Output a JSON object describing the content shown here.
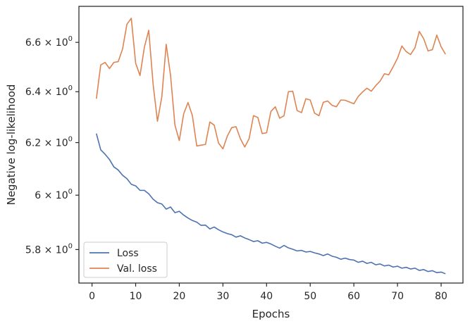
{
  "chart_data": {
    "type": "line",
    "xlabel": "Epochs",
    "ylabel": "Negative log-likelihood",
    "xlim": [
      -3,
      85
    ],
    "ylim": [
      5.68,
      6.75
    ],
    "y_scale": "log",
    "grid": false,
    "legend_position": "lower-left",
    "x_ticks": [
      0,
      10,
      20,
      30,
      40,
      50,
      60,
      70,
      80
    ],
    "x_tick_labels": [
      "0",
      "10",
      "20",
      "30",
      "40",
      "50",
      "60",
      "70",
      "80"
    ],
    "y_ticks": [
      5.8,
      6.0,
      6.2,
      6.4,
      6.6
    ],
    "y_tick_labels": [
      {
        "mantissa": "5.8",
        "base": "10",
        "exp": "0"
      },
      {
        "mantissa": "6",
        "base": "10",
        "exp": "0"
      },
      {
        "mantissa": "6.2",
        "base": "10",
        "exp": "0"
      },
      {
        "mantissa": "6.4",
        "base": "10",
        "exp": "0"
      },
      {
        "mantissa": "6.6",
        "base": "10",
        "exp": "0"
      }
    ],
    "x": [
      1,
      2,
      3,
      4,
      5,
      6,
      7,
      8,
      9,
      10,
      11,
      12,
      13,
      14,
      15,
      16,
      17,
      18,
      19,
      20,
      21,
      22,
      23,
      24,
      25,
      26,
      27,
      28,
      29,
      30,
      31,
      32,
      33,
      34,
      35,
      36,
      37,
      38,
      39,
      40,
      41,
      42,
      43,
      44,
      45,
      46,
      47,
      48,
      49,
      50,
      51,
      52,
      53,
      54,
      55,
      56,
      57,
      58,
      59,
      60,
      61,
      62,
      63,
      64,
      65,
      66,
      67,
      68,
      69,
      70,
      71,
      72,
      73,
      74,
      75,
      76,
      77,
      78,
      79,
      80,
      81
    ],
    "series": [
      {
        "name": "Loss",
        "color": "#4c72b0",
        "values": [
          6.235,
          6.172,
          6.155,
          6.135,
          6.107,
          6.095,
          6.075,
          6.062,
          6.041,
          6.035,
          6.018,
          6.018,
          6.005,
          5.985,
          5.972,
          5.967,
          5.948,
          5.956,
          5.935,
          5.94,
          5.926,
          5.915,
          5.906,
          5.9,
          5.888,
          5.889,
          5.875,
          5.882,
          5.872,
          5.864,
          5.858,
          5.854,
          5.845,
          5.85,
          5.842,
          5.836,
          5.829,
          5.832,
          5.823,
          5.826,
          5.82,
          5.812,
          5.805,
          5.815,
          5.806,
          5.801,
          5.795,
          5.797,
          5.791,
          5.793,
          5.788,
          5.784,
          5.778,
          5.784,
          5.776,
          5.772,
          5.765,
          5.769,
          5.764,
          5.762,
          5.754,
          5.758,
          5.75,
          5.754,
          5.745,
          5.748,
          5.741,
          5.744,
          5.737,
          5.74,
          5.733,
          5.736,
          5.73,
          5.733,
          5.725,
          5.728,
          5.721,
          5.724,
          5.717,
          5.719,
          5.713
        ]
      },
      {
        "name": "Val. loss",
        "color": "#dd8452",
        "values": [
          6.372,
          6.508,
          6.518,
          6.493,
          6.518,
          6.521,
          6.573,
          6.675,
          6.7,
          6.515,
          6.465,
          6.58,
          6.65,
          6.43,
          6.283,
          6.38,
          6.592,
          6.465,
          6.268,
          6.208,
          6.312,
          6.357,
          6.305,
          6.187,
          6.19,
          6.193,
          6.28,
          6.268,
          6.198,
          6.176,
          6.225,
          6.258,
          6.262,
          6.215,
          6.183,
          6.215,
          6.305,
          6.298,
          6.235,
          6.238,
          6.322,
          6.34,
          6.295,
          6.305,
          6.4,
          6.402,
          6.325,
          6.317,
          6.372,
          6.367,
          6.315,
          6.305,
          6.358,
          6.363,
          6.346,
          6.34,
          6.367,
          6.366,
          6.359,
          6.352,
          6.381,
          6.399,
          6.414,
          6.402,
          6.424,
          6.442,
          6.472,
          6.468,
          6.5,
          6.535,
          6.585,
          6.562,
          6.55,
          6.578,
          6.645,
          6.615,
          6.565,
          6.57,
          6.63,
          6.582,
          6.551
        ]
      }
    ]
  }
}
